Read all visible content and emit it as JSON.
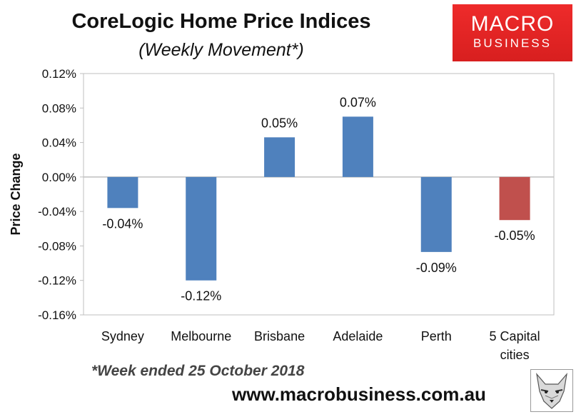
{
  "title": "CoreLogic Home Price Indices",
  "subtitle": "(Weekly Movement*)",
  "logo": {
    "line1": "MACRO",
    "line2": "BUSINESS"
  },
  "footnote": "*Week ended 25 October 2018",
  "website": "www.macrobusiness.com.au",
  "mascot_icon": "wolf-head-icon",
  "colors": {
    "bar": "#4f81bd",
    "highlight_bar": "#c0504d",
    "logo_bg": "#e62a2a"
  },
  "chart_data": {
    "type": "bar",
    "title": "CoreLogic Home Price Indices",
    "subtitle": "(Weekly Movement*)",
    "ylabel": "Price Change",
    "xlabel": "",
    "categories": [
      [
        "Sydney"
      ],
      [
        "Melbourne"
      ],
      [
        "Brisbane"
      ],
      [
        "Adelaide"
      ],
      [
        "Perth"
      ],
      [
        "5 Capital",
        "cities"
      ]
    ],
    "values": [
      -0.036,
      -0.12,
      0.046,
      0.07,
      -0.087,
      -0.05
    ],
    "data_labels": [
      "-0.04%",
      "-0.12%",
      "0.05%",
      "0.07%",
      "-0.09%",
      "-0.05%"
    ],
    "highlight_index": 5,
    "ylim": [
      -0.16,
      0.12
    ],
    "yticks": [
      0.12,
      0.08,
      0.04,
      0.0,
      -0.04,
      -0.08,
      -0.12,
      -0.16
    ],
    "ytick_labels": [
      "0.12%",
      "0.08%",
      "0.04%",
      "0.00%",
      "-0.04%",
      "-0.08%",
      "-0.12%",
      "-0.16%"
    ],
    "grid": false,
    "legend": "none"
  }
}
